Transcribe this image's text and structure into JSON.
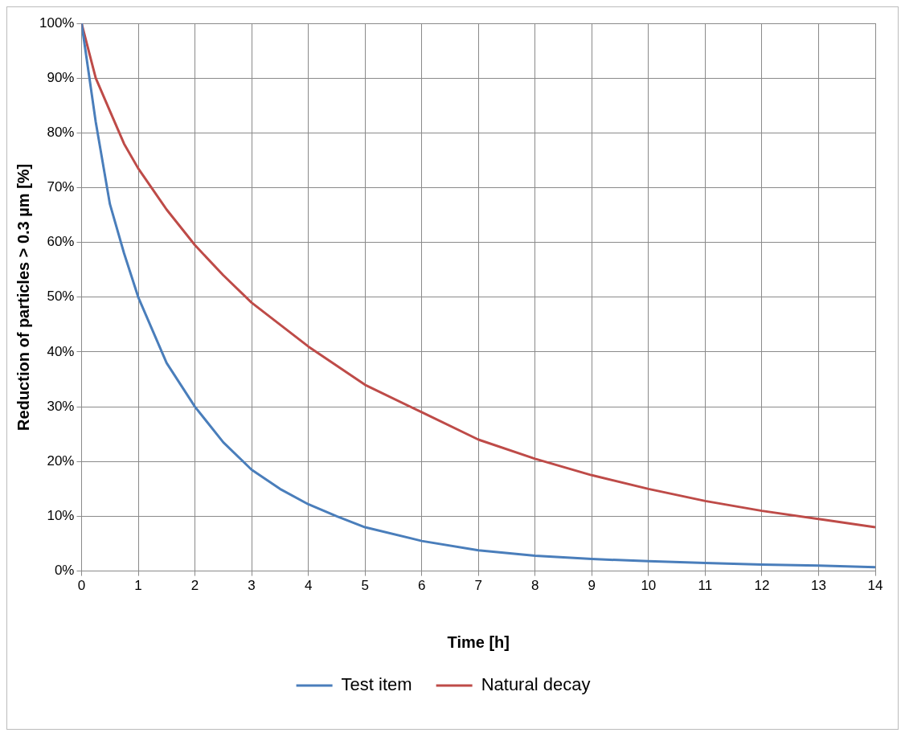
{
  "chart_data": {
    "type": "line",
    "xlabel": "Time [h]",
    "ylabel": "Reduction of particles > 0.3 µm [%]",
    "x": [
      0,
      0.25,
      0.5,
      0.75,
      1,
      1.5,
      2,
      2.5,
      3,
      3.5,
      4,
      4.5,
      5,
      6,
      7,
      8,
      9,
      10,
      11,
      12,
      13,
      14
    ],
    "series": [
      {
        "name": "Test item",
        "color": "#4a7ebb",
        "values": [
          100,
          82,
          67,
          58,
          50,
          38,
          30,
          23.5,
          18.5,
          15,
          12.2,
          10,
          8,
          5.5,
          3.8,
          2.8,
          2.2,
          1.8,
          1.5,
          1.2,
          1.0,
          0.7
        ]
      },
      {
        "name": "Natural decay",
        "color": "#be4b48",
        "values": [
          100,
          90,
          84,
          78,
          73.5,
          66,
          59.5,
          54,
          49,
          45,
          41,
          37.5,
          34,
          29,
          24,
          20.5,
          17.5,
          15,
          12.8,
          11,
          9.5,
          8
        ]
      }
    ],
    "xlim": [
      0,
      14
    ],
    "xticks": [
      0,
      1,
      2,
      3,
      4,
      5,
      6,
      7,
      8,
      9,
      10,
      11,
      12,
      13,
      14
    ],
    "ylim": [
      0,
      100
    ],
    "yticks": [
      {
        "value": 0,
        "label": "0%"
      },
      {
        "value": 10,
        "label": "10%"
      },
      {
        "value": 20,
        "label": "20%"
      },
      {
        "value": 30,
        "label": "30%"
      },
      {
        "value": 40,
        "label": "40%"
      },
      {
        "value": 50,
        "label": "50%"
      },
      {
        "value": 60,
        "label": "60%"
      },
      {
        "value": 70,
        "label": "70%"
      },
      {
        "value": 80,
        "label": "80%"
      },
      {
        "value": 90,
        "label": "90%"
      },
      {
        "value": 100,
        "label": "100%"
      }
    ],
    "grid": true,
    "legend": "bottom",
    "marker": "none",
    "line_style": "solid"
  }
}
